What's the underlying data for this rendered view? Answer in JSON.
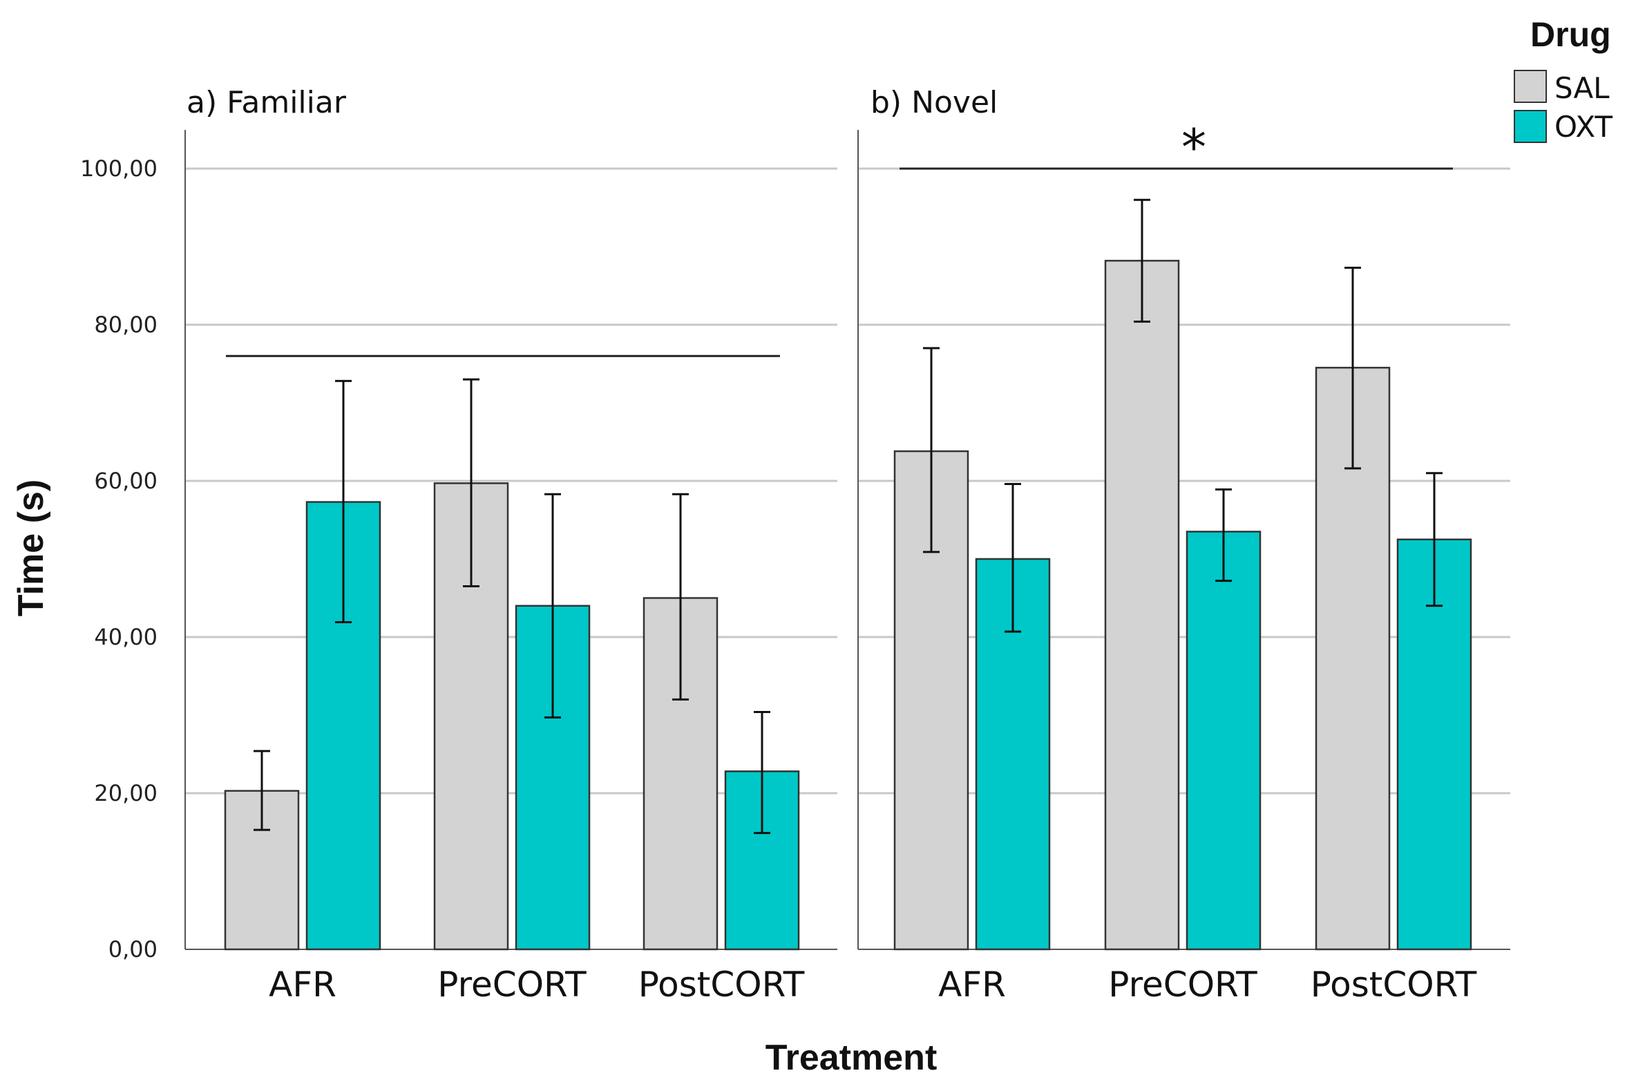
{
  "chart_data": {
    "type": "bar",
    "ylabel": "Time (s)",
    "xlabel": "Treatment",
    "ylim": [
      0,
      100
    ],
    "yticks": [
      "0,00",
      "20,00",
      "40,00",
      "60,00",
      "80,00",
      "100,00"
    ],
    "ytick_values": [
      0,
      20,
      40,
      60,
      80,
      100
    ],
    "grid": "horizontal",
    "legend": {
      "title": "Drug",
      "placement": "top-right",
      "items": [
        {
          "name": "SAL",
          "color": "#d3d3d3"
        },
        {
          "name": "OXT",
          "color": "#00c8c8"
        }
      ]
    },
    "categories": [
      "AFR",
      "PreCORT",
      "PostCORT"
    ],
    "panels": [
      {
        "title": "a) Familiar",
        "significance_marker": "",
        "series": [
          {
            "name": "SAL",
            "values": [
              20.3,
              59.7,
              45.0
            ],
            "err_low": [
              15.3,
              46.5,
              32.0
            ],
            "err_high": [
              25.4,
              73.0,
              58.3
            ]
          },
          {
            "name": "OXT",
            "values": [
              57.3,
              44.0,
              22.8
            ],
            "err_low": [
              41.9,
              29.7,
              14.9
            ],
            "err_high": [
              72.8,
              58.3,
              30.4
            ]
          }
        ]
      },
      {
        "title": "b) Novel",
        "significance_marker": "*",
        "series": [
          {
            "name": "SAL",
            "values": [
              63.8,
              88.2,
              74.5
            ],
            "err_low": [
              50.9,
              80.4,
              61.6
            ],
            "err_high": [
              77.0,
              96.0,
              87.3
            ]
          },
          {
            "name": "OXT",
            "values": [
              50.0,
              53.5,
              52.5
            ],
            "err_low": [
              40.7,
              47.2,
              44.0
            ],
            "err_high": [
              59.6,
              58.9,
              61.0
            ]
          }
        ]
      }
    ]
  }
}
